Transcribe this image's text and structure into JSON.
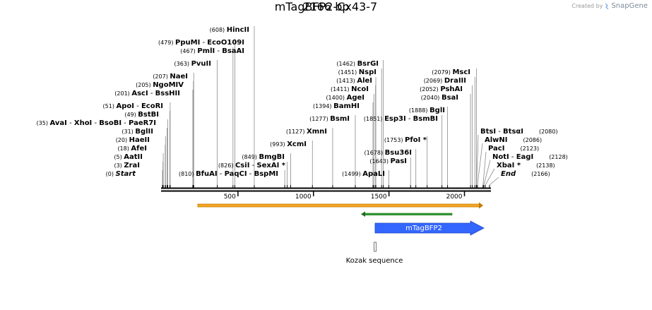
{
  "header": {
    "created_by": "Created by",
    "brand": "SnapGene",
    "brand_icon": "snapgene-logo-icon"
  },
  "plasmid": {
    "name": "mTagBFP2-Cx43-7",
    "length_label": "2166 bp",
    "length": 2166
  },
  "ruler": {
    "ticks": [
      {
        "value": 500,
        "label": "500"
      },
      {
        "value": 1000,
        "label": "1000"
      },
      {
        "value": 1500,
        "label": "1500"
      },
      {
        "value": 2000,
        "label": "2000"
      }
    ]
  },
  "enzyme_labels": {
    "left": [
      {
        "pos": "(608)",
        "names": [
          "HincII"
        ],
        "site": 608
      },
      {
        "pos": "(479)",
        "names": [
          "PpuMI",
          "EcoO109I"
        ],
        "site": 479
      },
      {
        "pos": "(467)",
        "names": [
          "PmlI",
          "BsaAI"
        ],
        "site": 467
      },
      {
        "pos": "(363)",
        "names": [
          "PvuII"
        ],
        "site": 363
      },
      {
        "pos": "(207)",
        "names": [
          "NaeI"
        ],
        "site": 207
      },
      {
        "pos": "(205)",
        "names": [
          "NgoMIV"
        ],
        "site": 205
      },
      {
        "pos": "(201)",
        "names": [
          "AscI",
          "BssHII"
        ],
        "site": 201
      },
      {
        "pos": "(51)",
        "names": [
          "ApoI",
          "EcoRI"
        ],
        "site": 51
      },
      {
        "pos": "(49)",
        "names": [
          "BstBI"
        ],
        "site": 49
      },
      {
        "pos": "(35)",
        "names": [
          "AvaI",
          "XhoI",
          "BsoBI",
          "PaeR7I"
        ],
        "site": 35
      },
      {
        "pos": "(31)",
        "names": [
          "BglII"
        ],
        "site": 31
      },
      {
        "pos": "(20)",
        "names": [
          "HaeII"
        ],
        "site": 20
      },
      {
        "pos": "(18)",
        "names": [
          "AfeI"
        ],
        "site": 18
      },
      {
        "pos": "(5)",
        "names": [
          "AatII"
        ],
        "site": 5
      },
      {
        "pos": "(3)",
        "names": [
          "ZraI"
        ],
        "site": 3
      },
      {
        "pos": "(0)",
        "names": [
          "Start"
        ],
        "site": 0,
        "italic": true
      }
    ],
    "middle": [
      {
        "pos": "(810)",
        "names": [
          "BfuAI",
          "PaqCI",
          "BspMI"
        ],
        "site": 810
      },
      {
        "pos": "(826)",
        "names": [
          "CsiI",
          "SexAI *"
        ],
        "site": 826
      },
      {
        "pos": "(849)",
        "names": [
          "BmgBI"
        ],
        "site": 849
      },
      {
        "pos": "(993)",
        "names": [
          "XcmI"
        ],
        "site": 993
      },
      {
        "pos": "(1127)",
        "names": [
          "XmnI"
        ],
        "site": 1127
      },
      {
        "pos": "(1277)",
        "names": [
          "BsmI"
        ],
        "site": 1277
      },
      {
        "pos": "(1394)",
        "names": [
          "BamHI"
        ],
        "site": 1394
      },
      {
        "pos": "(1400)",
        "names": [
          "AgeI"
        ],
        "site": 1400
      },
      {
        "pos": "(1411)",
        "names": [
          "NcoI"
        ],
        "site": 1411
      },
      {
        "pos": "(1413)",
        "names": [
          "AleI"
        ],
        "site": 1413
      },
      {
        "pos": "(1451)",
        "names": [
          "NspI"
        ],
        "site": 1451
      },
      {
        "pos": "(1462)",
        "names": [
          "BsrGI"
        ],
        "site": 1462
      },
      {
        "pos": "(1499)",
        "names": [
          "ApaLI"
        ],
        "site": 1499
      },
      {
        "pos": "(1643)",
        "names": [
          "PasI"
        ],
        "site": 1643
      },
      {
        "pos": "(1678)",
        "names": [
          "Bsu36I"
        ],
        "site": 1678
      },
      {
        "pos": "(1753)",
        "names": [
          "PfoI *"
        ],
        "site": 1753
      }
    ],
    "right": [
      {
        "pos": "(1851)",
        "names": [
          "Esp3I",
          "BsmBI"
        ],
        "site": 1851
      },
      {
        "pos": "(1888)",
        "names": [
          "BglI"
        ],
        "site": 1888
      },
      {
        "pos": "(2040)",
        "names": [
          "BsaI"
        ],
        "site": 2040
      },
      {
        "pos": "(2052)",
        "names": [
          "PshAI"
        ],
        "site": 2052
      },
      {
        "pos": "(2069)",
        "names": [
          "DraIII"
        ],
        "site": 2069
      },
      {
        "pos": "(2079)",
        "names": [
          "MscI"
        ],
        "site": 2079
      },
      {
        "pos": "(2080)",
        "names": [
          "BtsI",
          "BtsαI"
        ],
        "site": 2080
      },
      {
        "pos": "(2086)",
        "names": [
          "AlwNI"
        ],
        "site": 2086
      },
      {
        "pos": "(2123)",
        "names": [
          "PacI"
        ],
        "site": 2123
      },
      {
        "pos": "(2128)",
        "names": [
          "NotI",
          "EagI"
        ],
        "site": 2128
      },
      {
        "pos": "(2138)",
        "names": [
          "XbaI *"
        ],
        "site": 2138
      },
      {
        "pos": "(2166)",
        "names": [
          "End"
        ],
        "site": 2166,
        "italic": true
      }
    ]
  },
  "features": [
    {
      "name": "",
      "type": "orange-orf",
      "start": 230,
      "end": 2166,
      "direction": "forward",
      "color": "#F5A623"
    },
    {
      "name": "",
      "type": "green-orf",
      "start": 1330,
      "end": 2000,
      "direction": "reverse",
      "color": "#2E9E2E"
    },
    {
      "name": "mTagBFP2",
      "type": "cds",
      "start": 1420,
      "end": 2166,
      "direction": "forward",
      "color": "#3366FF"
    },
    {
      "name": "Kozak sequence",
      "type": "misc",
      "start": 1410,
      "end": 1420,
      "direction": "none",
      "color": "#999999"
    }
  ]
}
